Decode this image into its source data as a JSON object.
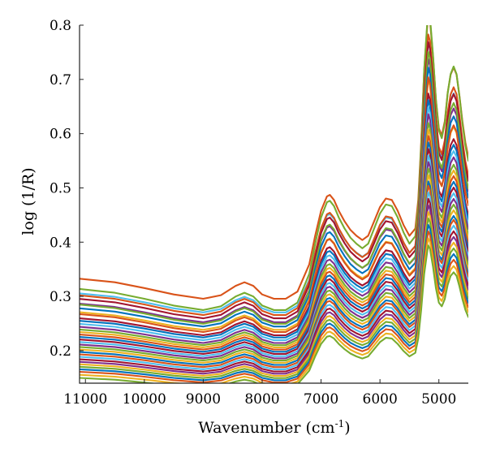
{
  "chart_data": {
    "type": "line",
    "title": "",
    "xlabel": "Wavenumber (cm",
    "xlabel_superscript": "-1",
    "xlabel_suffix": ")",
    "ylabel": "log (1/R)",
    "xlim": [
      11100,
      4500
    ],
    "ylim": [
      0.14,
      0.8
    ],
    "x_reversed": true,
    "grid": false,
    "legend": "none",
    "x_ticks": [
      11000,
      10000,
      9000,
      8000,
      7000,
      6000,
      5000
    ],
    "y_ticks": [
      0.2,
      0.3,
      0.4,
      0.5,
      0.6,
      0.7,
      0.8
    ],
    "series_count": 34,
    "palette": [
      "#0072BD",
      "#D95319",
      "#EDB120",
      "#7E2F8E",
      "#77AC30",
      "#4DBEEE",
      "#A2142F"
    ],
    "reference_shape": {
      "x": [
        11100,
        10500,
        10000,
        9500,
        9000,
        8700,
        8450,
        8300,
        8150,
        8000,
        7800,
        7600,
        7400,
        7200,
        7100,
        7000,
        6900,
        6850,
        6780,
        6700,
        6600,
        6500,
        6400,
        6300,
        6200,
        6100,
        6000,
        5900,
        5800,
        5700,
        5600,
        5500,
        5400,
        5350,
        5300,
        5250,
        5200,
        5180,
        5150,
        5100,
        5050,
        5000,
        4950,
        4900,
        4850,
        4800,
        4750,
        4700,
        4650,
        4600,
        4550,
        4500
      ],
      "y": [
        0.25,
        0.245,
        0.237,
        0.228,
        0.222,
        0.227,
        0.24,
        0.245,
        0.24,
        0.228,
        0.222,
        0.222,
        0.232,
        0.27,
        0.31,
        0.345,
        0.365,
        0.367,
        0.36,
        0.345,
        0.33,
        0.318,
        0.31,
        0.304,
        0.31,
        0.33,
        0.35,
        0.362,
        0.36,
        0.345,
        0.325,
        0.31,
        0.32,
        0.36,
        0.44,
        0.54,
        0.6,
        0.62,
        0.61,
        0.56,
        0.5,
        0.46,
        0.45,
        0.47,
        0.51,
        0.535,
        0.545,
        0.535,
        0.505,
        0.47,
        0.44,
        0.42
      ]
    },
    "series": [
      {
        "color": "#D95319",
        "offset": 0.073,
        "scale": 1.32
      },
      {
        "color": "#77AC30",
        "offset": 0.052,
        "scale": 1.39
      },
      {
        "color": "#4DBEEE",
        "offset": 0.048,
        "scale": 1.25
      },
      {
        "color": "#D95319",
        "offset": 0.043,
        "scale": 1.3
      },
      {
        "color": "#A2142F",
        "offset": 0.037,
        "scale": 1.28
      },
      {
        "color": "#7E2F8E",
        "offset": 0.03,
        "scale": 1.22
      },
      {
        "color": "#77AC30",
        "offset": 0.027,
        "scale": 1.26
      },
      {
        "color": "#0072BD",
        "offset": 0.022,
        "scale": 1.2
      },
      {
        "color": "#EDB120",
        "offset": 0.016,
        "scale": 1.16
      },
      {
        "color": "#D95319",
        "offset": 0.012,
        "scale": 1.18
      },
      {
        "color": "#A2142F",
        "offset": 0.006,
        "scale": 1.12
      },
      {
        "color": "#0072BD",
        "offset": 0.002,
        "scale": 1.1
      },
      {
        "color": "#4DBEEE",
        "offset": -0.003,
        "scale": 1.08
      },
      {
        "color": "#7E2F8E",
        "offset": -0.008,
        "scale": 1.06
      },
      {
        "color": "#77AC30",
        "offset": -0.012,
        "scale": 1.03
      },
      {
        "color": "#EDB120",
        "offset": -0.016,
        "scale": 1.01
      },
      {
        "color": "#D95319",
        "offset": -0.02,
        "scale": 0.99
      },
      {
        "color": "#0072BD",
        "offset": -0.024,
        "scale": 0.97
      },
      {
        "color": "#A2142F",
        "offset": -0.028,
        "scale": 0.95
      },
      {
        "color": "#4DBEEE",
        "offset": -0.032,
        "scale": 0.93
      },
      {
        "color": "#7E2F8E",
        "offset": -0.036,
        "scale": 0.91
      },
      {
        "color": "#77AC30",
        "offset": -0.04,
        "scale": 0.89
      },
      {
        "color": "#EDB120",
        "offset": -0.044,
        "scale": 0.87
      },
      {
        "color": "#0072BD",
        "offset": -0.048,
        "scale": 0.85
      },
      {
        "color": "#D95319",
        "offset": -0.052,
        "scale": 0.84
      },
      {
        "color": "#4DBEEE",
        "offset": -0.056,
        "scale": 0.82
      },
      {
        "color": "#A2142F",
        "offset": -0.06,
        "scale": 0.8
      },
      {
        "color": "#7E2F8E",
        "offset": -0.064,
        "scale": 0.78
      },
      {
        "color": "#EDB120",
        "offset": -0.068,
        "scale": 0.76
      },
      {
        "color": "#77AC30",
        "offset": -0.072,
        "scale": 0.74
      },
      {
        "color": "#0072BD",
        "offset": -0.076,
        "scale": 0.72
      },
      {
        "color": "#D95319",
        "offset": -0.08,
        "scale": 0.7
      },
      {
        "color": "#EDB120",
        "offset": -0.085,
        "scale": 0.68
      },
      {
        "color": "#77AC30",
        "offset": -0.09,
        "scale": 0.66
      }
    ]
  }
}
